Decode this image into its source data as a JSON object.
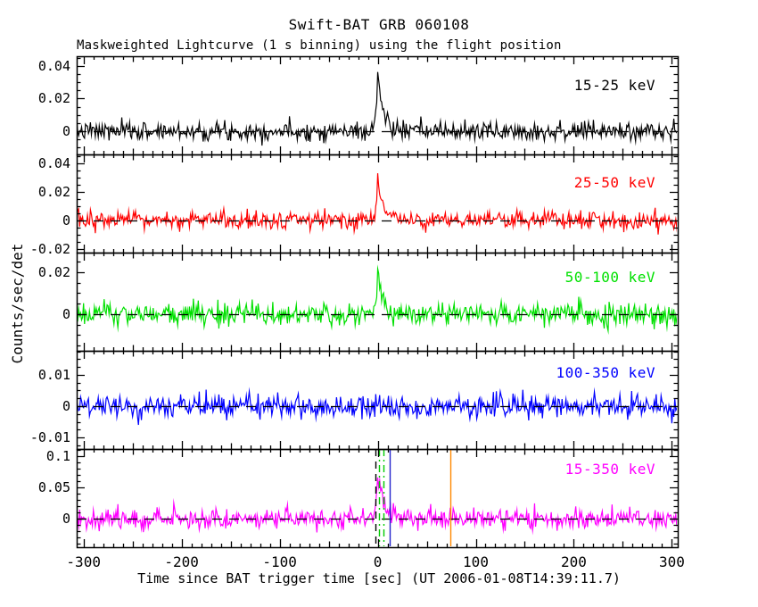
{
  "chart_data": {
    "type": "line",
    "title": "Swift-BAT GRB 060108",
    "subtitle": "Maskweighted Lightcurve (1 s binning) using the flight position",
    "xlabel": "Time since BAT trigger time [sec] (UT 2006-01-08T14:39:11.7)",
    "ylabel": "Counts/sec/det",
    "background_color": "#ffffff",
    "frame_color": "#000000",
    "grid": false,
    "legend_position": "inside-right",
    "x": {
      "lim": [
        -307,
        306
      ],
      "major_ticks": [
        -300,
        -200,
        -100,
        0,
        100,
        200,
        300
      ],
      "major_tick_labels": [
        "-300",
        "-200",
        "-100",
        "0",
        "100",
        "200",
        "300"
      ],
      "medium_step": 50,
      "minor_step": 10,
      "bin_seconds": 1
    },
    "zero_line": {
      "value": 0,
      "color": "#000000",
      "style": "dashed"
    },
    "panels": [
      {
        "label": "15-25 keV",
        "color": "#000000",
        "ylim": [
          -0.01425,
          0.046
        ],
        "ytick_values": [
          0,
          0.02,
          0.04
        ],
        "ytick_labels": [
          "0",
          "0.02",
          "0.04"
        ],
        "y_minor_step": 0.005,
        "noise_sigma": 0.0028,
        "peak": {
          "t0": 0,
          "amplitude": 0.036,
          "rise_s": 1.6,
          "decay_s": 5.5
        },
        "seed": 7
      },
      {
        "label": "25-50 keV",
        "color": "#ff0000",
        "ylim": [
          -0.0225,
          0.04625
        ],
        "ytick_values": [
          -0.02,
          0,
          0.02,
          0.04
        ],
        "ytick_labels": [
          "-0.02",
          "0",
          "0.02",
          "0.04"
        ],
        "y_minor_step": 0.005,
        "noise_sigma": 0.0032,
        "peak": {
          "t0": 0,
          "amplitude": 0.03,
          "rise_s": 1.6,
          "decay_s": 6.5
        },
        "seed": 13
      },
      {
        "label": "50-100 keV",
        "color": "#00e000",
        "ylim": [
          -0.01745,
          0.02936
        ],
        "ytick_values": [
          0,
          0.02
        ],
        "ytick_labels": [
          "0",
          "0.02"
        ],
        "y_minor_step": 0.005,
        "noise_sigma": 0.0028,
        "peak": {
          "t0": 0,
          "amplitude": 0.023,
          "rise_s": 1.4,
          "decay_s": 4.5
        },
        "seed": 21
      },
      {
        "label": "100-350 keV",
        "color": "#0000ff",
        "ylim": [
          -0.01371,
          0.01771
        ],
        "ytick_values": [
          -0.01,
          0,
          0.01
        ],
        "ytick_labels": [
          "-0.01",
          "0",
          "0.01"
        ],
        "y_minor_step": 0.0025,
        "noise_sigma": 0.0018,
        "peak": {
          "t0": 0,
          "amplitude": 0,
          "rise_s": 1,
          "decay_s": 1
        },
        "seed": 29
      },
      {
        "label": "15-350 keV",
        "color": "#ff00ff",
        "ylim": [
          -0.04571,
          0.11143
        ],
        "ytick_values": [
          0,
          0.05,
          0.1
        ],
        "ytick_labels": [
          "0",
          "0.05",
          "0.1"
        ],
        "y_minor_step": 0.01,
        "noise_sigma": 0.008,
        "peak": {
          "t0": 0,
          "amplitude": 0.085,
          "rise_s": 1.6,
          "decay_s": 6
        },
        "seed": 37,
        "event_lines": [
          {
            "t": -2,
            "color": "#000000",
            "style": "dashed"
          },
          {
            "t": 1,
            "color": "#00cc00",
            "style": "dashdot"
          },
          {
            "t": 6,
            "color": "#00cc00",
            "style": "dashdot"
          },
          {
            "t": 12,
            "color": "#2222cc",
            "style": "solid"
          },
          {
            "t": 74,
            "color": "#ff8800",
            "style": "solid"
          }
        ]
      }
    ]
  }
}
